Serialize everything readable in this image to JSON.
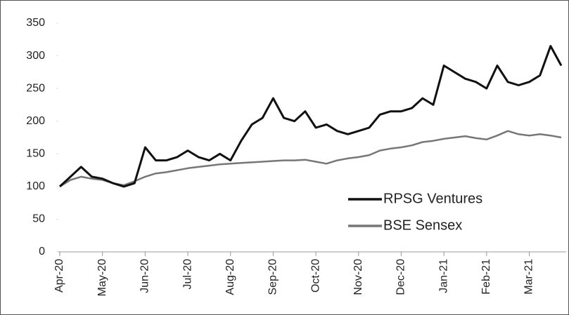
{
  "chart_data": {
    "type": "line",
    "categories": [
      "Apr-20",
      null,
      null,
      null,
      "May-20",
      null,
      null,
      null,
      "Jun-20",
      null,
      null,
      null,
      "Jul-20",
      null,
      null,
      null,
      "Aug-20",
      null,
      null,
      null,
      "Sep-20",
      null,
      null,
      null,
      "Oct-20",
      null,
      null,
      null,
      "Nov-20",
      null,
      null,
      null,
      "Dec-20",
      null,
      null,
      null,
      "Jan-21",
      null,
      null,
      null,
      "Feb-21",
      null,
      null,
      null,
      "Mar-21",
      null,
      null,
      null
    ],
    "series": [
      {
        "name": "RPSG Ventures",
        "color": "#111111",
        "values": [
          100,
          115,
          130,
          115,
          112,
          105,
          100,
          105,
          160,
          140,
          140,
          145,
          155,
          145,
          140,
          150,
          140,
          170,
          195,
          205,
          235,
          205,
          200,
          215,
          190,
          195,
          185,
          180,
          185,
          190,
          210,
          215,
          215,
          220,
          235,
          225,
          285,
          275,
          265,
          260,
          250,
          285,
          260,
          255,
          260,
          270,
          315,
          285
        ]
      },
      {
        "name": "BSE Sensex",
        "color": "#777777",
        "values": [
          100,
          110,
          115,
          112,
          110,
          105,
          102,
          108,
          115,
          120,
          122,
          125,
          128,
          130,
          132,
          134,
          135,
          136,
          137,
          138,
          139,
          140,
          140,
          141,
          138,
          135,
          140,
          143,
          145,
          148,
          155,
          158,
          160,
          163,
          168,
          170,
          173,
          175,
          177,
          174,
          172,
          178,
          185,
          180,
          178,
          180,
          178,
          175
        ]
      }
    ],
    "ylim": [
      0,
      350
    ],
    "yticks": [
      0,
      50,
      100,
      150,
      200,
      250,
      300,
      350
    ],
    "legend": "lower right"
  }
}
